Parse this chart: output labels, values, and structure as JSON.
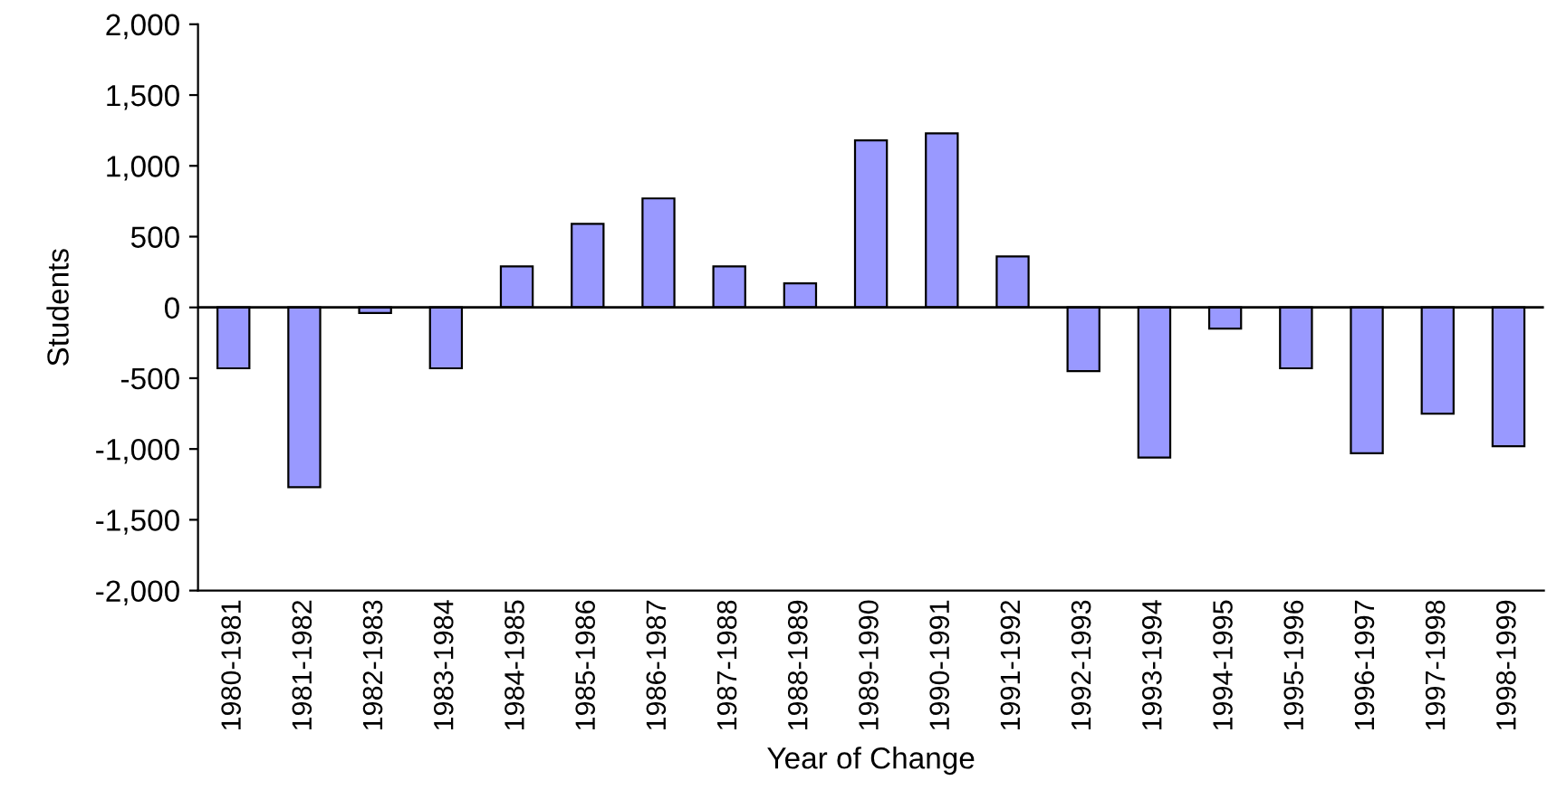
{
  "chart_data": {
    "type": "bar",
    "xlabel": "Year of Change",
    "ylabel": "Students",
    "categories": [
      "1980-1981",
      "1981-1982",
      "1982-1983",
      "1983-1984",
      "1984-1985",
      "1985-1986",
      "1986-1987",
      "1987-1988",
      "1988-1989",
      "1989-1990",
      "1990-1991",
      "1991-1992",
      "1992-1993",
      "1993-1994",
      "1994-1995",
      "1995-1996",
      "1996-1997",
      "1997-1998",
      "1998-1999"
    ],
    "values": [
      -430,
      -1270,
      -40,
      -430,
      290,
      590,
      770,
      290,
      170,
      1180,
      1230,
      360,
      -450,
      -1060,
      -150,
      -430,
      -1030,
      -750,
      -980
    ],
    "color": "#9999ff",
    "ylim": [
      -2000,
      2000
    ],
    "yticks": [
      {
        "value": -2000,
        "label": "-2,000"
      },
      {
        "value": -1500,
        "label": "-1,500"
      },
      {
        "value": -1000,
        "label": "-1,000"
      },
      {
        "value": -500,
        "label": "-500"
      },
      0,
      500,
      {
        "value": 1000,
        "label": "1,000"
      },
      {
        "value": 1500,
        "label": "1,500"
      },
      {
        "value": 2000,
        "label": "2,000"
      }
    ],
    "ref_lines": [
      {
        "axis": "y",
        "value": 0,
        "color": "#000000"
      }
    ],
    "grid": false,
    "legend": false
  }
}
